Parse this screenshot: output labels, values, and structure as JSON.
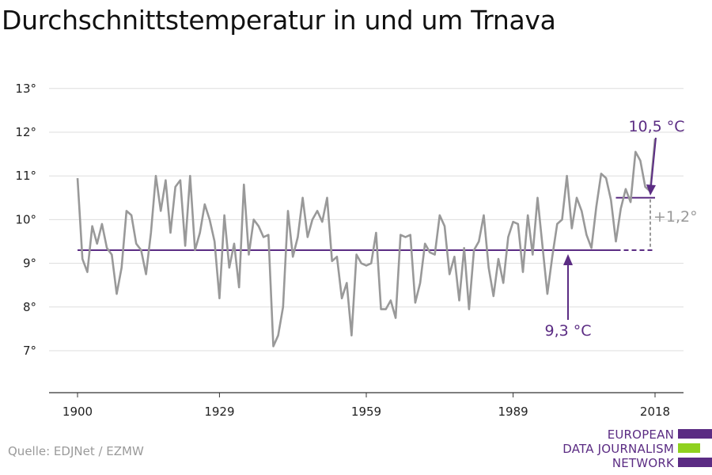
{
  "title": "Durchschnittstemperatur in und um Trnava",
  "source": "Quelle: EDJNet / EZMW",
  "logo": {
    "lines": [
      "EUROPEAN",
      "DATA JOURNALISM",
      "NETWORK"
    ],
    "colors": {
      "purple": "#5b2c83",
      "green": "#8fd11f"
    }
  },
  "colors": {
    "series": "#999999",
    "reference": "#5b2c83",
    "difference": "#999999",
    "grid": "#dddddd",
    "axis": "#333333"
  },
  "chart_data": {
    "type": "line",
    "title": "Durchschnittstemperatur in und um Trnava",
    "xlabel": "",
    "ylabel": "",
    "xlim": [
      1900,
      2018
    ],
    "ylim": [
      6,
      13.5
    ],
    "grid": true,
    "x_ticks": [
      1900,
      1929,
      1959,
      1989,
      2018
    ],
    "y_ticks": [
      7,
      8,
      9,
      10,
      11,
      12,
      13
    ],
    "y_tick_labels": [
      "7°",
      "8°",
      "9°",
      "10°",
      "11°",
      "12°",
      "13°"
    ],
    "series": [
      {
        "x": [
          1900,
          1901,
          1902,
          1903,
          1904,
          1905,
          1906,
          1907,
          1908,
          1909,
          1910,
          1911,
          1912,
          1913,
          1914,
          1915,
          1916,
          1917,
          1918,
          1919,
          1920,
          1921,
          1922,
          1923,
          1924,
          1925,
          1926,
          1927,
          1928,
          1929,
          1930,
          1931,
          1932,
          1933,
          1934,
          1935,
          1936,
          1937,
          1938,
          1939,
          1940,
          1941,
          1942,
          1943,
          1944,
          1945,
          1946,
          1947,
          1948,
          1949,
          1950,
          1951,
          1952,
          1953,
          1954,
          1955,
          1956,
          1957,
          1958,
          1959,
          1960,
          1961,
          1962,
          1963,
          1964,
          1965,
          1966,
          1967,
          1968,
          1969,
          1970,
          1971,
          1972,
          1973,
          1974,
          1975,
          1976,
          1977,
          1978,
          1979,
          1980,
          1981,
          1982,
          1983,
          1984,
          1985,
          1986,
          1987,
          1988,
          1989,
          1990,
          1991,
          1992,
          1993,
          1994,
          1995,
          1996,
          1997,
          1998,
          1999,
          2000,
          2001,
          2002,
          2003,
          2004,
          2005,
          2006,
          2007,
          2008,
          2009,
          2010,
          2011,
          2012,
          2013,
          2014,
          2015,
          2016,
          2017,
          2018
        ],
        "values": [
          10.95,
          9.1,
          8.8,
          9.85,
          9.45,
          9.9,
          9.35,
          9.2,
          8.3,
          8.9,
          10.2,
          10.1,
          9.45,
          9.3,
          8.75,
          9.7,
          11.0,
          10.2,
          10.9,
          9.7,
          10.75,
          10.9,
          9.4,
          11.0,
          9.3,
          9.7,
          10.35,
          10.0,
          9.5,
          8.2,
          10.1,
          8.9,
          9.45,
          8.45,
          10.8,
          9.2,
          10.0,
          9.85,
          9.6,
          9.65,
          7.1,
          7.35,
          8.0,
          10.2,
          9.15,
          9.6,
          10.5,
          9.6,
          10.0,
          10.2,
          9.95,
          10.5,
          9.05,
          9.15,
          8.2,
          8.55,
          7.35,
          9.2,
          9.0,
          8.95,
          9.0,
          9.7,
          7.95,
          7.95,
          8.15,
          7.75,
          9.65,
          9.6,
          9.65,
          8.1,
          8.55,
          9.45,
          9.25,
          9.2,
          10.1,
          9.85,
          8.75,
          9.15,
          8.15,
          9.35,
          7.95,
          9.3,
          9.5,
          10.1,
          8.9,
          8.25,
          9.1,
          8.55,
          9.6,
          9.95,
          9.9,
          8.8,
          10.1,
          9.2,
          10.5,
          9.4,
          8.3,
          9.15,
          9.9,
          10.0,
          11.0,
          9.8,
          10.5,
          10.2,
          9.65,
          9.35,
          10.3,
          11.05,
          10.95,
          10.45,
          9.5,
          10.25,
          10.7,
          10.4,
          11.55,
          11.35,
          10.75,
          10.65,
          11.85
        ]
      }
    ],
    "reference_line": {
      "value": 9.3,
      "from": 1900,
      "to": 2018
    },
    "recent_line": {
      "value": 10.5,
      "from": 2010,
      "to": 2018
    },
    "annotations": {
      "recent_label": "10,5 °C",
      "reference_label": "9,3 °C",
      "difference_label": "+1,2°"
    }
  }
}
